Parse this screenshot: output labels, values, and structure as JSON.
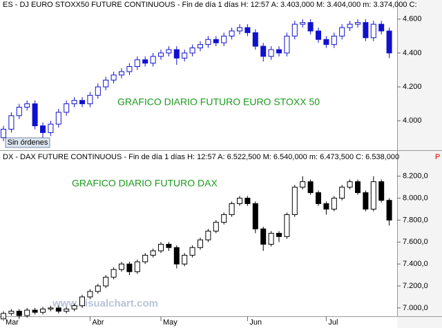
{
  "chart_data": [
    {
      "type": "candlestick",
      "header": "ES - DJ EURO STOXX50 FUTURE CONTINUOUS - Fin de día 1 días  H: 12:57  A: 3.403,000  M: 3.404,000  m: 3.374,000  C:",
      "annotation": "GRAFICO DIARIO FUTURO EURO STOXX 50",
      "status": "Sin órdenes",
      "color": "#1010d0",
      "ylim": [
        3.83,
        4.656
      ],
      "yticks": [
        {
          "value": 4.0,
          "label": "4.000"
        },
        {
          "value": 4.2,
          "label": "4.200"
        },
        {
          "value": 4.4,
          "label": "4.400"
        },
        {
          "value": 4.6,
          "label": "4.600"
        }
      ],
      "open": [
        3.9,
        3.95,
        4.03,
        4.08,
        4.1,
        3.97,
        3.93,
        3.98,
        4.05,
        4.1,
        4.12,
        4.1,
        4.15,
        4.2,
        4.24,
        4.27,
        4.29,
        4.32,
        4.36,
        4.34,
        4.38,
        4.4,
        4.42,
        4.37,
        4.4,
        4.43,
        4.45,
        4.48,
        4.46,
        4.5,
        4.53,
        4.55,
        4.52,
        4.44,
        4.38,
        4.42,
        4.4,
        4.5,
        4.57,
        4.58,
        4.53,
        4.48,
        4.45,
        4.5,
        4.55,
        4.57,
        4.58,
        4.49,
        4.57,
        4.53
      ],
      "high": [
        3.97,
        4.05,
        4.1,
        4.12,
        4.12,
        3.99,
        4.0,
        4.07,
        4.12,
        4.14,
        4.14,
        4.17,
        4.22,
        4.26,
        4.29,
        4.31,
        4.34,
        4.38,
        4.38,
        4.4,
        4.42,
        4.44,
        4.44,
        4.42,
        4.45,
        4.47,
        4.5,
        4.5,
        4.52,
        4.55,
        4.57,
        4.57,
        4.54,
        4.46,
        4.44,
        4.44,
        4.52,
        4.59,
        4.6,
        4.6,
        4.55,
        4.5,
        4.52,
        4.57,
        4.59,
        4.6,
        4.6,
        4.59,
        4.59,
        4.55
      ],
      "low": [
        3.88,
        3.93,
        4.01,
        4.06,
        3.95,
        3.9,
        3.91,
        3.96,
        4.03,
        4.08,
        4.08,
        4.08,
        4.13,
        4.18,
        4.22,
        4.25,
        4.27,
        4.3,
        4.32,
        4.32,
        4.36,
        4.38,
        4.33,
        4.35,
        4.38,
        4.41,
        4.43,
        4.44,
        4.44,
        4.48,
        4.51,
        4.5,
        4.42,
        4.35,
        4.36,
        4.38,
        4.38,
        4.48,
        4.55,
        4.51,
        4.46,
        4.43,
        4.43,
        4.48,
        4.53,
        4.55,
        4.47,
        4.47,
        4.51,
        4.37
      ],
      "close": [
        3.95,
        4.03,
        4.08,
        4.1,
        3.97,
        3.93,
        3.98,
        4.05,
        4.1,
        4.12,
        4.1,
        4.15,
        4.2,
        4.24,
        4.27,
        4.29,
        4.32,
        4.36,
        4.34,
        4.38,
        4.4,
        4.42,
        4.37,
        4.4,
        4.43,
        4.45,
        4.48,
        4.46,
        4.5,
        4.53,
        4.55,
        4.52,
        4.44,
        4.38,
        4.42,
        4.4,
        4.5,
        4.57,
        4.58,
        4.53,
        4.48,
        4.45,
        4.5,
        4.55,
        4.57,
        4.58,
        4.49,
        4.57,
        4.53,
        4.4
      ]
    },
    {
      "type": "candlestick",
      "header": "DX - DAX FUTURE CONTINUOUS - Fin de día 1 días  H: 12:57  A: 6.522,500  M: 6.540,000  m: 6.473,500  C: 6.538,000",
      "flag": "P",
      "annotation": "GRAFICO DIARIO FUTURO DAX",
      "watermark": "www.visualchart.com",
      "color": "#000000",
      "ylim": [
        6.93,
        8.33
      ],
      "yticks": [
        {
          "value": 7.0,
          "label": "7.000,0"
        },
        {
          "value": 7.2,
          "label": "7.200,0"
        },
        {
          "value": 7.4,
          "label": "7.400,0"
        },
        {
          "value": 7.6,
          "label": "7.600,0"
        },
        {
          "value": 7.8,
          "label": "7.800,0"
        },
        {
          "value": 8.0,
          "label": "8.000,0"
        },
        {
          "value": 8.2,
          "label": "8.200,0"
        }
      ],
      "categories": [
        "Mar",
        null,
        null,
        null,
        null,
        null,
        null,
        null,
        null,
        null,
        null,
        "Abr",
        null,
        null,
        null,
        null,
        null,
        null,
        null,
        null,
        "May",
        null,
        null,
        null,
        null,
        null,
        null,
        null,
        null,
        null,
        null,
        "Jun",
        null,
        null,
        null,
        null,
        null,
        null,
        null,
        null,
        null,
        "Jul",
        null,
        null,
        null,
        null,
        null,
        null,
        null,
        null
      ],
      "open": [
        6.9,
        6.95,
        6.97,
        6.93,
        6.98,
        6.96,
        6.99,
        7.0,
        6.97,
        6.99,
        7.02,
        7.1,
        7.15,
        7.2,
        7.28,
        7.35,
        7.4,
        7.33,
        7.42,
        7.48,
        7.52,
        7.58,
        7.55,
        7.4,
        7.48,
        7.55,
        7.62,
        7.7,
        7.78,
        7.85,
        7.95,
        8.0,
        7.95,
        7.72,
        7.58,
        7.68,
        7.65,
        7.85,
        8.1,
        8.15,
        8.05,
        7.95,
        7.9,
        8.0,
        8.1,
        8.15,
        8.05,
        7.9,
        8.15,
        7.98
      ],
      "high": [
        6.97,
        6.99,
        6.99,
        7.0,
        7.0,
        7.01,
        7.02,
        7.02,
        7.01,
        7.04,
        7.12,
        7.17,
        7.22,
        7.3,
        7.37,
        7.42,
        7.42,
        7.44,
        7.5,
        7.54,
        7.6,
        7.6,
        7.57,
        7.5,
        7.57,
        7.64,
        7.72,
        7.8,
        7.87,
        7.97,
        8.02,
        8.02,
        7.97,
        7.74,
        7.7,
        7.7,
        7.87,
        8.12,
        8.2,
        8.17,
        8.07,
        7.97,
        8.02,
        8.12,
        8.17,
        8.17,
        8.07,
        8.2,
        8.17,
        8.0
      ],
      "low": [
        6.88,
        6.93,
        6.9,
        6.91,
        6.94,
        6.94,
        6.97,
        6.95,
        6.95,
        6.97,
        7.0,
        7.08,
        7.13,
        7.18,
        7.26,
        7.33,
        7.3,
        7.31,
        7.4,
        7.46,
        7.5,
        7.52,
        7.36,
        7.38,
        7.46,
        7.53,
        7.6,
        7.68,
        7.76,
        7.83,
        7.93,
        7.93,
        7.68,
        7.52,
        7.56,
        7.6,
        7.63,
        7.83,
        8.08,
        8.03,
        7.93,
        7.85,
        7.88,
        7.98,
        8.08,
        8.03,
        7.88,
        7.88,
        7.96,
        7.75
      ],
      "close": [
        6.95,
        6.97,
        6.93,
        6.98,
        6.96,
        6.99,
        7.0,
        6.97,
        6.99,
        7.02,
        7.1,
        7.15,
        7.2,
        7.28,
        7.35,
        7.4,
        7.33,
        7.42,
        7.48,
        7.52,
        7.58,
        7.55,
        7.4,
        7.48,
        7.55,
        7.62,
        7.7,
        7.78,
        7.85,
        7.95,
        8.0,
        7.95,
        7.72,
        7.58,
        7.68,
        7.65,
        7.85,
        8.1,
        8.15,
        8.05,
        7.95,
        7.9,
        8.0,
        8.1,
        8.15,
        8.05,
        7.9,
        8.15,
        7.98,
        7.8
      ]
    }
  ]
}
